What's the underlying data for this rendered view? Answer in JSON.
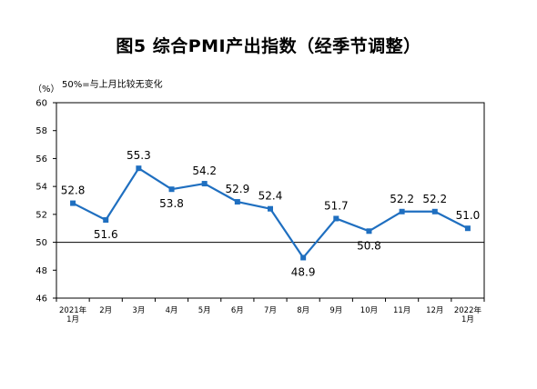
{
  "title": "图5 综合PMI产出指数（经季节调整）",
  "unit_label": "（%）",
  "note": "50%=与上月比较无变化",
  "colors": {
    "line": "#1f6fc0",
    "marker": "#1f6fc0",
    "reference": "#000000",
    "frame": "#000000"
  },
  "chart_data": {
    "type": "line",
    "title": "图5 综合PMI产出指数（经季节调整）",
    "ylabel": "（%）",
    "ylim": [
      46,
      60
    ],
    "yticks": [
      46,
      48,
      50,
      52,
      54,
      56,
      58,
      60
    ],
    "reference_line": 50,
    "grid": false,
    "categories": [
      [
        "2021年",
        "1月"
      ],
      [
        "2月"
      ],
      [
        "3月"
      ],
      [
        "4月"
      ],
      [
        "5月"
      ],
      [
        "6月"
      ],
      [
        "7月"
      ],
      [
        "8月"
      ],
      [
        "9月"
      ],
      [
        "10月"
      ],
      [
        "11月"
      ],
      [
        "12月"
      ],
      [
        "2022年",
        "1月"
      ]
    ],
    "series": [
      {
        "values": [
          52.8,
          51.6,
          55.3,
          53.8,
          54.2,
          52.9,
          52.4,
          48.9,
          51.7,
          50.8,
          52.2,
          52.2,
          51.0
        ]
      }
    ],
    "data_labels": [
      "52.8",
      "51.6",
      "55.3",
      "53.8",
      "54.2",
      "52.9",
      "52.4",
      "48.9",
      "51.7",
      "50.8",
      "52.2",
      "52.2",
      "51.0"
    ]
  }
}
